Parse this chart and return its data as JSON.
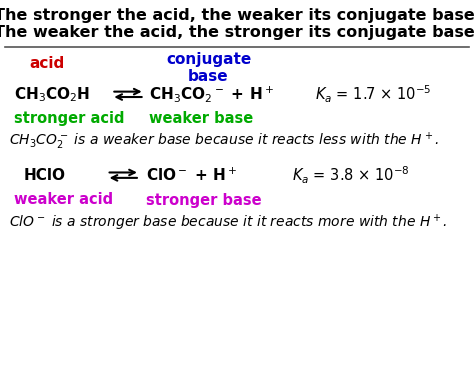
{
  "title1": "The stronger the acid, the weaker its conjugate base.",
  "title2": "The weaker the acid, the stronger its conjugate base.",
  "title_color": "#000000",
  "title_fontsize": 11.5,
  "title_fontweight": "bold",
  "label_acid": "acid",
  "label_conjugate": "conjugate\nbase",
  "label_acid_color": "#cc0000",
  "label_conjugate_color": "#0000cc",
  "label_fontsize": 11,
  "eq1_left": "CH$_3$CO$_2$H",
  "eq1_right": "CH$_3$CO$_2$$^-$ + H$^+$",
  "eq1_ka": "$\\mathit{K}_a$ = 1.7 × 10$^{-5}$",
  "eq1_stronger": "stronger acid",
  "eq1_weaker": "weaker base",
  "eq1_note": "$CH_3CO_2^-$ is a weaker base because it reacts less with the $H^+$.",
  "eq2_left": "HClO",
  "eq2_right": "ClO$^-$ + H$^+$",
  "eq2_ka": "$\\mathit{K}_a$ = 3.8 × 10$^{-8}$",
  "eq2_weaker": "weaker acid",
  "eq2_stronger": "stronger base",
  "eq2_note": "$ClO^-$ is a stronger base because it it reacts more with the $H^+$.",
  "green_color": "#00aa00",
  "magenta_color": "#cc00cc",
  "black": "#000000",
  "bg_color": "#ffffff",
  "italic_fontsize": 10
}
